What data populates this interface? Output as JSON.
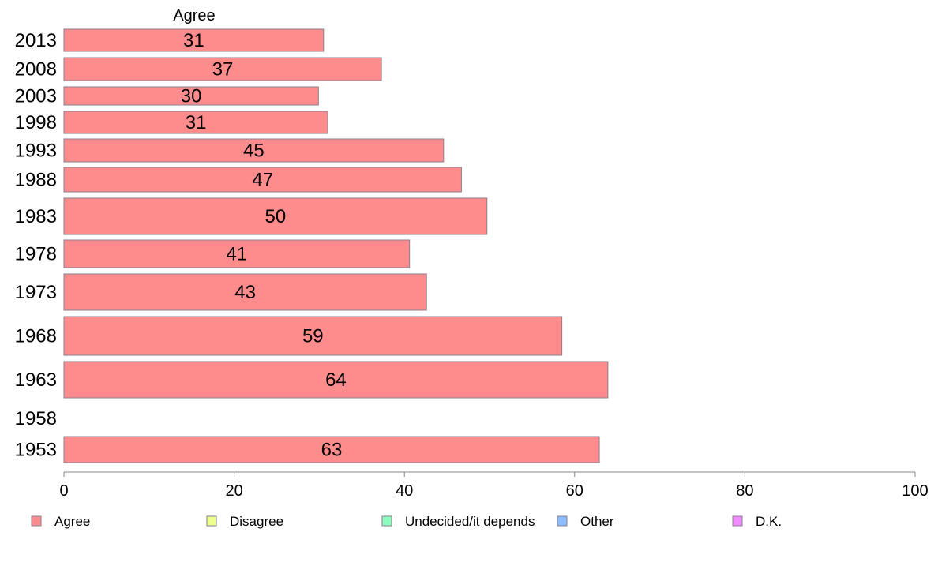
{
  "chart_data": {
    "type": "bar",
    "orientation": "horizontal",
    "column_title": "Agree",
    "categories": [
      "2013",
      "2008",
      "2003",
      "1998",
      "1993",
      "1988",
      "1983",
      "1978",
      "1973",
      "1968",
      "1963",
      "1958",
      "1953"
    ],
    "series": [
      {
        "name": "Agree",
        "color": "#ff8c8c",
        "values": [
          30.5,
          37.3,
          29.9,
          31.0,
          44.6,
          46.7,
          49.7,
          40.6,
          42.6,
          58.5,
          63.9,
          null,
          62.9
        ],
        "labels": [
          "31",
          "37",
          "30",
          "31",
          "45",
          "47",
          "50",
          "41",
          "43",
          "59",
          "64",
          "",
          "63"
        ]
      }
    ],
    "xlim": [
      0,
      100
    ],
    "x_ticks": [
      "0",
      "20",
      "40",
      "60",
      "80",
      "100"
    ],
    "grid": false,
    "legend": {
      "position": "bottom",
      "items": [
        {
          "label": "Agree",
          "color": "#ff8c8c"
        },
        {
          "label": "Disagree",
          "color": "#eeff8c"
        },
        {
          "label": "Undecided/it depends",
          "color": "#8cffc0"
        },
        {
          "label": "Other",
          "color": "#8cbcff"
        },
        {
          "label": "D.K.",
          "color": "#ee8cff"
        }
      ]
    }
  }
}
